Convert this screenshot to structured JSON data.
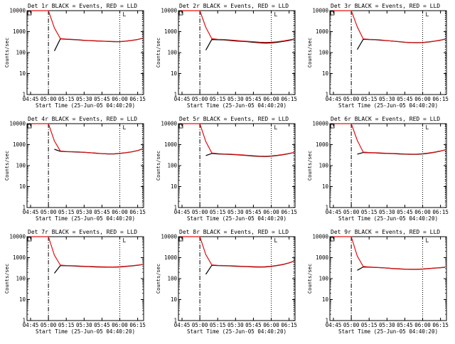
{
  "styles": {
    "events_color": "#000000",
    "lld_color": "#e01010",
    "axis_color": "#000000",
    "background": "#ffffff"
  },
  "common": {
    "ylabel": "Counts/sec",
    "xlabel": "Start Time (25-Jun-05 04:40:20)",
    "x_ticks": [
      "04:45",
      "05:00",
      "05:15",
      "05:30",
      "05:45",
      "06:00",
      "06:15"
    ],
    "y_ticks": [
      "1",
      "10",
      "100",
      "1000",
      "10000"
    ]
  },
  "chart_data": [
    {
      "type": "line",
      "title": "Det 1r BLACK = Events, RED = LLD",
      "marker": "L",
      "x": [
        "04:45",
        "04:50",
        "04:55",
        "04:57",
        "05:00",
        "05:05",
        "05:10",
        "05:15",
        "05:20",
        "05:25",
        "05:30",
        "05:35",
        "05:40",
        "05:45",
        "05:50",
        "05:55",
        "06:00",
        "06:05",
        "06:10",
        "06:15",
        "06:19"
      ],
      "series": [
        {
          "name": "Events",
          "values": [
            null,
            null,
            null,
            null,
            null,
            120,
            450,
            430,
            420,
            400,
            380,
            370,
            360,
            350,
            340,
            330,
            330,
            350,
            380,
            420,
            480
          ]
        },
        {
          "name": "LLD",
          "values": [
            10000,
            10000,
            10000,
            10000,
            10000,
            1500,
            470,
            440,
            430,
            410,
            390,
            375,
            365,
            355,
            345,
            340,
            335,
            350,
            380,
            420,
            480
          ]
        }
      ],
      "yscale": "log",
      "ylim": [
        1,
        10000
      ],
      "vlines": {
        "dashdot": "05:00",
        "dotted": [
          "06:00",
          "06:19"
        ]
      }
    },
    {
      "type": "line",
      "title": "Det 2r BLACK = Events, RED = LLD",
      "marker": "L",
      "x": [
        "04:45",
        "04:50",
        "04:55",
        "04:57",
        "05:00",
        "05:05",
        "05:10",
        "05:15",
        "05:20",
        "05:25",
        "05:30",
        "05:35",
        "05:40",
        "05:45",
        "05:50",
        "05:55",
        "06:00",
        "06:05",
        "06:10",
        "06:15",
        "06:19"
      ],
      "series": [
        {
          "name": "Events",
          "values": [
            null,
            null,
            null,
            null,
            null,
            130,
            420,
            410,
            400,
            380,
            360,
            345,
            330,
            310,
            295,
            285,
            290,
            310,
            340,
            380,
            430
          ]
        },
        {
          "name": "LLD",
          "values": [
            10000,
            10000,
            10000,
            10000,
            10000,
            1600,
            460,
            430,
            420,
            400,
            380,
            360,
            345,
            330,
            315,
            305,
            310,
            330,
            360,
            400,
            440
          ]
        }
      ],
      "yscale": "log",
      "ylim": [
        1,
        10000
      ],
      "vlines": {
        "dashdot": "05:00",
        "dotted": [
          "06:00",
          "06:19"
        ]
      }
    },
    {
      "type": "line",
      "title": "Det 3r BLACK = Events, RED = LLD",
      "marker": "L",
      "x": [
        "04:45",
        "04:50",
        "04:55",
        "04:57",
        "05:00",
        "05:05",
        "05:10",
        "05:15",
        "05:20",
        "05:25",
        "05:30",
        "05:35",
        "05:40",
        "05:45",
        "05:50",
        "05:55",
        "06:00",
        "06:05",
        "06:10",
        "06:15",
        "06:19"
      ],
      "series": [
        {
          "name": "Events",
          "values": [
            null,
            null,
            null,
            null,
            null,
            140,
            430,
            420,
            410,
            390,
            370,
            350,
            330,
            310,
            300,
            295,
            300,
            320,
            350,
            390,
            440
          ]
        },
        {
          "name": "LLD",
          "values": [
            10000,
            10000,
            10000,
            10000,
            10000,
            1700,
            450,
            430,
            420,
            400,
            375,
            355,
            335,
            315,
            305,
            300,
            305,
            325,
            355,
            395,
            440
          ]
        }
      ],
      "yscale": "log",
      "ylim": [
        1,
        10000
      ],
      "vlines": {
        "dashdot": "05:00",
        "dotted": [
          "06:00",
          "06:19"
        ]
      }
    },
    {
      "type": "line",
      "title": "Det 4r BLACK = Events, RED = LLD",
      "marker": "L",
      "x": [
        "04:45",
        "04:50",
        "04:55",
        "04:57",
        "05:00",
        "05:05",
        "05:10",
        "05:15",
        "05:20",
        "05:25",
        "05:30",
        "05:35",
        "05:40",
        "05:45",
        "05:50",
        "05:55",
        "06:00",
        "06:05",
        "06:10",
        "06:15",
        "06:19"
      ],
      "series": [
        {
          "name": "Events",
          "values": [
            null,
            null,
            null,
            null,
            null,
            600,
            480,
            460,
            450,
            440,
            430,
            410,
            390,
            370,
            360,
            360,
            380,
            410,
            450,
            520,
            620
          ]
        },
        {
          "name": "LLD",
          "values": [
            10000,
            10000,
            10000,
            10000,
            10000,
            1500,
            500,
            470,
            460,
            450,
            435,
            415,
            395,
            375,
            365,
            365,
            385,
            415,
            455,
            525,
            620
          ]
        }
      ],
      "yscale": "log",
      "ylim": [
        1,
        10000
      ],
      "vlines": {
        "dashdot": "05:00",
        "dotted": [
          "06:00",
          "06:19"
        ]
      }
    },
    {
      "type": "line",
      "title": "Det 5r BLACK = Events, RED = LLD",
      "marker": "L",
      "x": [
        "04:45",
        "04:50",
        "04:55",
        "04:57",
        "05:00",
        "05:05",
        "05:10",
        "05:15",
        "05:20",
        "05:25",
        "05:30",
        "05:35",
        "05:40",
        "05:45",
        "05:50",
        "05:55",
        "06:00",
        "06:05",
        "06:10",
        "06:15",
        "06:19"
      ],
      "series": [
        {
          "name": "Events",
          "values": [
            null,
            null,
            null,
            null,
            null,
            300,
            380,
            360,
            350,
            340,
            330,
            315,
            300,
            285,
            275,
            270,
            280,
            300,
            330,
            370,
            420
          ]
        },
        {
          "name": "LLD",
          "values": [
            10000,
            10000,
            10000,
            10000,
            10000,
            1400,
            400,
            375,
            360,
            350,
            340,
            325,
            310,
            295,
            285,
            280,
            290,
            310,
            340,
            380,
            420
          ]
        }
      ],
      "yscale": "log",
      "ylim": [
        1,
        10000
      ],
      "vlines": {
        "dashdot": "05:00",
        "dotted": [
          "06:00",
          "06:19"
        ]
      }
    },
    {
      "type": "line",
      "title": "Det 6r BLACK = Events, RED = LLD",
      "marker": "L",
      "x": [
        "04:45",
        "04:50",
        "04:55",
        "04:57",
        "05:00",
        "05:05",
        "05:10",
        "05:15",
        "05:20",
        "05:25",
        "05:30",
        "05:35",
        "05:40",
        "05:45",
        "05:50",
        "05:55",
        "06:00",
        "06:05",
        "06:10",
        "06:15",
        "06:19"
      ],
      "series": [
        {
          "name": "Events",
          "values": [
            null,
            null,
            null,
            null,
            null,
            350,
            420,
            410,
            400,
            390,
            380,
            370,
            360,
            350,
            345,
            345,
            360,
            390,
            430,
            490,
            560
          ]
        },
        {
          "name": "LLD",
          "values": [
            10000,
            10000,
            10000,
            10000,
            10000,
            1600,
            440,
            420,
            410,
            400,
            390,
            380,
            370,
            360,
            355,
            355,
            370,
            400,
            440,
            500,
            560
          ]
        }
      ],
      "yscale": "log",
      "ylim": [
        1,
        10000
      ],
      "vlines": {
        "dashdot": "05:00",
        "dotted": [
          "06:00",
          "06:19"
        ]
      }
    },
    {
      "type": "line",
      "title": "Det 7r BLACK = Events, RED = LLD",
      "marker": "L",
      "x": [
        "04:45",
        "04:50",
        "04:55",
        "04:57",
        "05:00",
        "05:05",
        "05:10",
        "05:15",
        "05:20",
        "05:25",
        "05:30",
        "05:35",
        "05:40",
        "05:45",
        "05:50",
        "05:55",
        "06:00",
        "06:05",
        "06:10",
        "06:15",
        "06:19"
      ],
      "series": [
        {
          "name": "Events",
          "values": [
            null,
            null,
            null,
            null,
            null,
            180,
            420,
            410,
            400,
            390,
            380,
            370,
            360,
            355,
            350,
            350,
            360,
            380,
            400,
            430,
            470
          ]
        },
        {
          "name": "LLD",
          "values": [
            10000,
            10000,
            10000,
            10000,
            10000,
            1300,
            440,
            420,
            410,
            400,
            390,
            380,
            370,
            365,
            360,
            360,
            370,
            390,
            410,
            440,
            470
          ]
        }
      ],
      "yscale": "log",
      "ylim": [
        1,
        10000
      ],
      "vlines": {
        "dashdot": "05:00",
        "dotted": [
          "06:00"
        ]
      }
    },
    {
      "type": "line",
      "title": "Det 8r BLACK = Events, RED = LLD",
      "marker": "L",
      "x": [
        "04:45",
        "04:50",
        "04:55",
        "04:57",
        "05:00",
        "05:05",
        "05:10",
        "05:15",
        "05:20",
        "05:25",
        "05:30",
        "05:35",
        "05:40",
        "05:45",
        "05:50",
        "05:55",
        "06:00",
        "06:05",
        "06:10",
        "06:15",
        "06:19"
      ],
      "series": [
        {
          "name": "Events",
          "values": [
            null,
            null,
            null,
            null,
            null,
            160,
            430,
            420,
            410,
            400,
            390,
            380,
            370,
            360,
            355,
            360,
            380,
            420,
            470,
            560,
            680
          ]
        },
        {
          "name": "LLD",
          "values": [
            10000,
            10000,
            10000,
            10000,
            10000,
            1400,
            450,
            430,
            420,
            410,
            400,
            390,
            380,
            370,
            365,
            370,
            390,
            430,
            480,
            570,
            680
          ]
        }
      ],
      "yscale": "log",
      "ylim": [
        1,
        10000
      ],
      "vlines": {
        "dashdot": "05:00",
        "dotted": [
          "06:00",
          "06:19"
        ]
      }
    },
    {
      "type": "line",
      "title": "Det 9r BLACK = Events, RED = LLD",
      "marker": "L",
      "x": [
        "04:45",
        "04:50",
        "04:55",
        "04:57",
        "05:00",
        "05:05",
        "05:10",
        "05:15",
        "05:20",
        "05:25",
        "05:30",
        "05:35",
        "05:40",
        "05:45",
        "05:50",
        "05:55",
        "06:00",
        "06:05",
        "06:10",
        "06:15",
        "06:19"
      ],
      "series": [
        {
          "name": "Events",
          "values": [
            null,
            null,
            null,
            null,
            null,
            250,
            360,
            350,
            340,
            330,
            320,
            300,
            290,
            280,
            275,
            275,
            285,
            300,
            315,
            330,
            345
          ]
        },
        {
          "name": "LLD",
          "values": [
            10000,
            10000,
            10000,
            10000,
            10000,
            1200,
            380,
            360,
            345,
            335,
            320,
            305,
            295,
            285,
            280,
            280,
            290,
            305,
            320,
            335,
            350
          ]
        }
      ],
      "yscale": "log",
      "ylim": [
        1,
        10000
      ],
      "vlines": {
        "dashdot": "05:00",
        "dotted": [
          "06:00"
        ]
      }
    }
  ]
}
